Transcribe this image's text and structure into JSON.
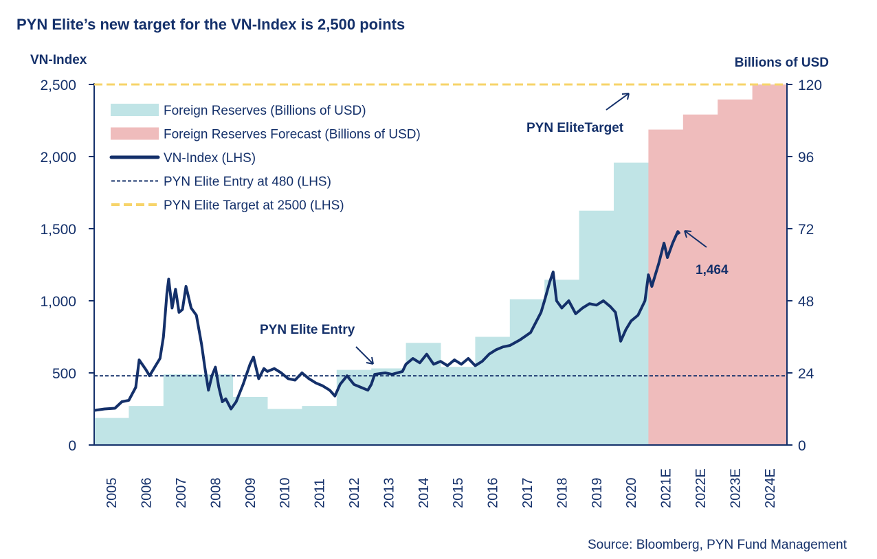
{
  "chart_data": {
    "type": "bar+line",
    "title": "PYN Elite’s new target for the VN-Index is 2,500 points",
    "ylabel_left": "VN-Index",
    "ylabel_right": "Billions of  USD",
    "ylim_left": [
      0,
      2500
    ],
    "ylim_right": [
      0,
      120
    ],
    "yticks_left": [
      "0",
      "500",
      "1,000",
      "1,500",
      "2,000",
      "2,500"
    ],
    "yticks_right": [
      "0",
      "24",
      "48",
      "72",
      "96",
      "120"
    ],
    "categories": [
      "2005",
      "2006",
      "2007",
      "2008",
      "2009",
      "2010",
      "2011",
      "2012",
      "2013",
      "2014",
      "2015",
      "2016",
      "2017",
      "2018",
      "2019",
      "2020",
      "2021E",
      "2022E",
      "2023E",
      "2024E"
    ],
    "reserves": [
      9,
      13,
      23.5,
      23.5,
      16,
      12,
      13,
      25,
      25.5,
      34,
      26,
      36,
      48.5,
      55,
      78,
      94,
      105,
      110,
      115,
      120
    ],
    "forecast_from_index": 16,
    "vnindex": [
      [
        2005.0,
        240
      ],
      [
        2005.3,
        250
      ],
      [
        2005.6,
        255
      ],
      [
        2005.8,
        300
      ],
      [
        2006.0,
        310
      ],
      [
        2006.2,
        400
      ],
      [
        2006.3,
        590
      ],
      [
        2006.5,
        520
      ],
      [
        2006.6,
        480
      ],
      [
        2006.8,
        560
      ],
      [
        2006.9,
        600
      ],
      [
        2007.0,
        750
      ],
      [
        2007.1,
        1050
      ],
      [
        2007.15,
        1150
      ],
      [
        2007.25,
        950
      ],
      [
        2007.35,
        1080
      ],
      [
        2007.45,
        920
      ],
      [
        2007.55,
        940
      ],
      [
        2007.65,
        1100
      ],
      [
        2007.8,
        950
      ],
      [
        2007.95,
        900
      ],
      [
        2008.1,
        700
      ],
      [
        2008.2,
        530
      ],
      [
        2008.3,
        380
      ],
      [
        2008.4,
        480
      ],
      [
        2008.5,
        540
      ],
      [
        2008.6,
        400
      ],
      [
        2008.7,
        300
      ],
      [
        2008.8,
        320
      ],
      [
        2008.95,
        250
      ],
      [
        2009.1,
        300
      ],
      [
        2009.3,
        420
      ],
      [
        2009.5,
        560
      ],
      [
        2009.6,
        610
      ],
      [
        2009.75,
        460
      ],
      [
        2009.9,
        530
      ],
      [
        2010.0,
        510
      ],
      [
        2010.2,
        530
      ],
      [
        2010.4,
        500
      ],
      [
        2010.6,
        460
      ],
      [
        2010.8,
        450
      ],
      [
        2011.0,
        500
      ],
      [
        2011.2,
        460
      ],
      [
        2011.4,
        430
      ],
      [
        2011.6,
        410
      ],
      [
        2011.8,
        380
      ],
      [
        2011.95,
        340
      ],
      [
        2012.1,
        420
      ],
      [
        2012.3,
        480
      ],
      [
        2012.5,
        420
      ],
      [
        2012.7,
        400
      ],
      [
        2012.9,
        380
      ],
      [
        2013.0,
        420
      ],
      [
        2013.1,
        490
      ],
      [
        2013.4,
        500
      ],
      [
        2013.6,
        490
      ],
      [
        2013.9,
        510
      ],
      [
        2014.0,
        560
      ],
      [
        2014.2,
        600
      ],
      [
        2014.4,
        570
      ],
      [
        2014.6,
        630
      ],
      [
        2014.8,
        560
      ],
      [
        2015.0,
        580
      ],
      [
        2015.2,
        550
      ],
      [
        2015.4,
        590
      ],
      [
        2015.6,
        560
      ],
      [
        2015.8,
        600
      ],
      [
        2016.0,
        550
      ],
      [
        2016.2,
        580
      ],
      [
        2016.4,
        630
      ],
      [
        2016.6,
        660
      ],
      [
        2016.8,
        680
      ],
      [
        2017.0,
        690
      ],
      [
        2017.3,
        730
      ],
      [
        2017.6,
        780
      ],
      [
        2017.9,
        920
      ],
      [
        2018.0,
        1000
      ],
      [
        2018.15,
        1130
      ],
      [
        2018.25,
        1200
      ],
      [
        2018.35,
        1000
      ],
      [
        2018.5,
        950
      ],
      [
        2018.7,
        1000
      ],
      [
        2018.9,
        910
      ],
      [
        2019.1,
        950
      ],
      [
        2019.3,
        980
      ],
      [
        2019.5,
        970
      ],
      [
        2019.7,
        1000
      ],
      [
        2019.9,
        960
      ],
      [
        2020.05,
        920
      ],
      [
        2020.2,
        720
      ],
      [
        2020.35,
        800
      ],
      [
        2020.5,
        860
      ],
      [
        2020.7,
        900
      ],
      [
        2020.9,
        1000
      ],
      [
        2021.0,
        1180
      ],
      [
        2021.1,
        1100
      ],
      [
        2021.3,
        1260
      ],
      [
        2021.45,
        1400
      ],
      [
        2021.55,
        1300
      ],
      [
        2021.7,
        1400
      ],
      [
        2021.85,
        1480
      ],
      [
        2021.9,
        1464
      ]
    ],
    "entry_level": 480,
    "target_level": 2500,
    "legend": [
      "Foreign Reserves (Billions of USD)",
      "Foreign Reserves Forecast (Billions of USD)",
      "VN-Index (LHS)",
      "PYN Elite Entry at 480 (LHS)",
      "PYN Elite Target at 2500 (LHS)"
    ],
    "legend_position": "top-left",
    "annotations": {
      "entry": "PYN Elite Entry",
      "target": "PYN EliteTarget",
      "last": "1,464"
    },
    "source": "Source: Bloomberg, PYN Fund Management",
    "colors": {
      "reserves": "#c0e4e6",
      "forecast": "#efbcbc",
      "line": "#14306a",
      "target": "#f7d46a"
    }
  }
}
